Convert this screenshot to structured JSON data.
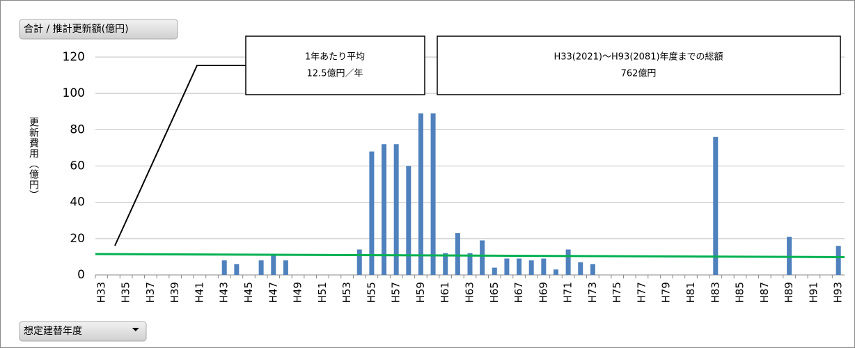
{
  "chart_data": {
    "type": "bar",
    "title": "合計 / 推計更新額(億円)",
    "y_label": "更新費用（億円）",
    "filter_label": "想定建替年度",
    "annotations": [
      {
        "lines": [
          "1年あたり平均",
          "12.5億円／年"
        ]
      },
      {
        "lines": [
          "H33(2021)～H93(2081)年度までの総額",
          "762億円"
        ]
      }
    ],
    "categories": [
      "H33",
      null,
      "H35",
      null,
      "H37",
      null,
      "H39",
      null,
      "H41",
      null,
      "H43",
      null,
      "H45",
      null,
      "H47",
      null,
      "H49",
      null,
      "H51",
      null,
      "H53",
      null,
      "H55",
      null,
      "H57",
      null,
      "H59",
      null,
      "H61",
      null,
      "H63",
      null,
      "H65",
      null,
      "H67",
      null,
      "H69",
      null,
      "H71",
      null,
      "H73",
      null,
      "H75",
      null,
      "H77",
      null,
      "H79",
      null,
      "H81",
      null,
      "H83",
      null,
      "H85",
      null,
      "H87",
      null,
      "H89",
      null,
      "H91",
      null,
      "H93"
    ],
    "values": [
      null,
      null,
      null,
      null,
      null,
      null,
      null,
      null,
      null,
      null,
      8,
      6,
      null,
      8,
      11,
      8,
      null,
      null,
      null,
      null,
      null,
      14,
      68,
      72,
      72,
      60,
      89,
      89,
      12,
      23,
      12,
      19,
      4,
      9,
      9,
      8,
      9,
      3,
      14,
      7,
      6,
      null,
      null,
      null,
      null,
      null,
      null,
      null,
      null,
      null,
      76,
      null,
      null,
      null,
      null,
      null,
      21,
      null,
      null,
      null,
      16
    ],
    "color": "#4f81bd",
    "ylim": [
      0,
      120
    ],
    "yticks": [
      0,
      20,
      40,
      60,
      80,
      100,
      120
    ],
    "grid": true,
    "trendline": {
      "color": "#00b050",
      "start": 11.5,
      "end": 9.8
    }
  }
}
